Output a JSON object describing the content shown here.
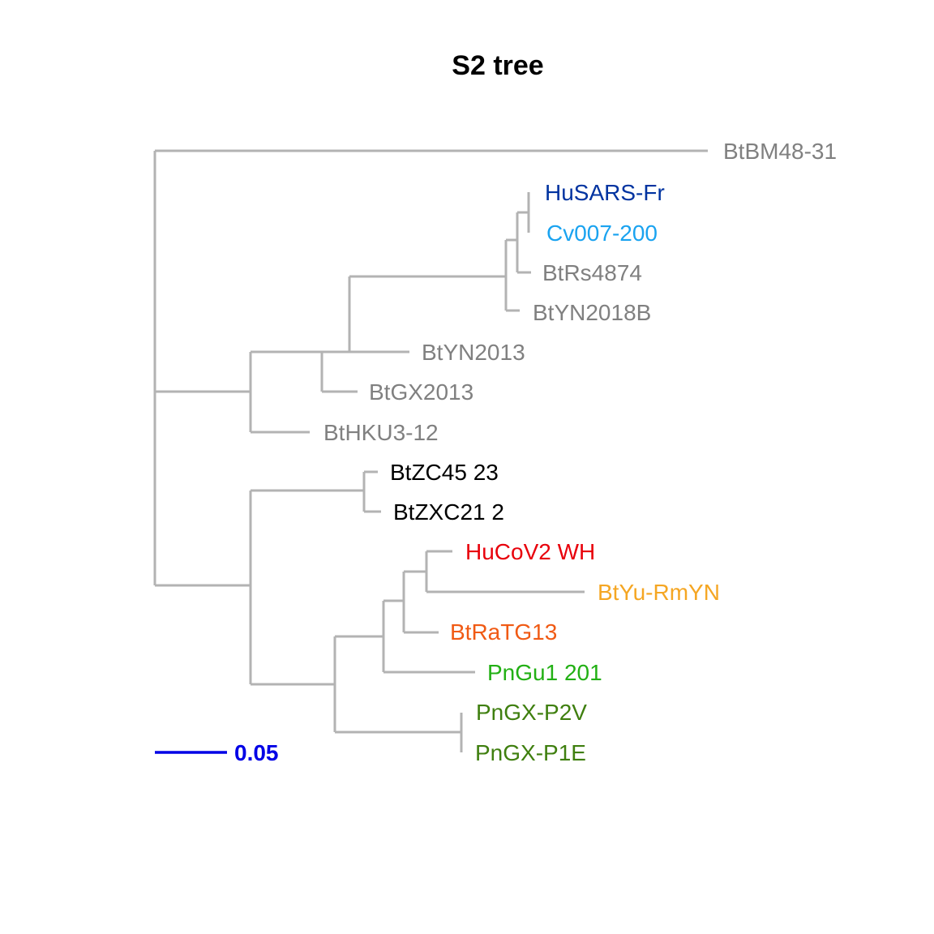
{
  "title": "S2 tree",
  "branch_color": "#b3b3b3",
  "tips": [
    {
      "label": "BtBM48-31",
      "color": "#808080"
    },
    {
      "label": "HuSARS-Fr",
      "color": "#0033a0"
    },
    {
      "label": "Cv007-200",
      "color": "#1aa3f0"
    },
    {
      "label": "BtRs4874",
      "color": "#808080"
    },
    {
      "label": "BtYN2018B",
      "color": "#808080"
    },
    {
      "label": "BtYN2013",
      "color": "#808080"
    },
    {
      "label": "BtGX2013",
      "color": "#808080"
    },
    {
      "label": "BtHKU3-12",
      "color": "#808080"
    },
    {
      "label": "BtZC45 23",
      "color": "#000000"
    },
    {
      "label": "BtZXC21 2",
      "color": "#000000"
    },
    {
      "label": "HuCoV2 WH",
      "color": "#e8000b"
    },
    {
      "label": "BtYu-RmYN",
      "color": "#f5a623"
    },
    {
      "label": "BtRaTG13",
      "color": "#f05a14"
    },
    {
      "label": "PnGu1 201",
      "color": "#22b014"
    },
    {
      "label": "PnGX-P2V",
      "color": "#3f7f0f"
    },
    {
      "label": "PnGX-P1E",
      "color": "#3f7f0f"
    }
  ],
  "scale_bar": {
    "label": "0.05",
    "color": "#0000e6"
  }
}
